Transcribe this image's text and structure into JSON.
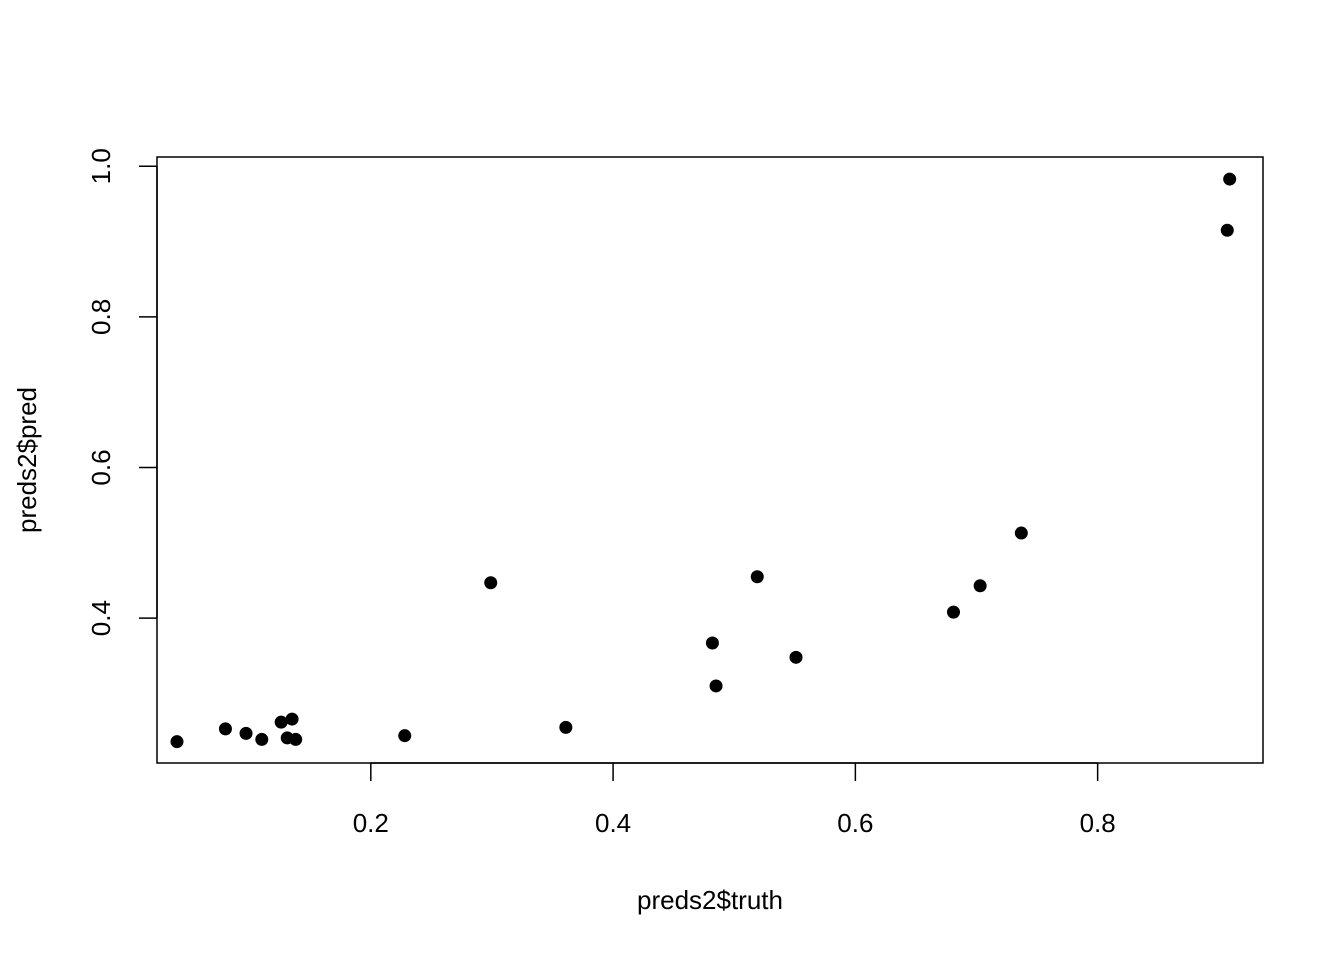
{
  "chart_data": {
    "type": "scatter",
    "title": "",
    "xlabel": "preds2$truth",
    "ylabel": "preds2$pred",
    "xlim": [
      0.0235,
      0.9365
    ],
    "ylim": [
      0.2077,
      1.0123
    ],
    "xticks": [
      0.2,
      0.4,
      0.6,
      0.8
    ],
    "xtick_labels": [
      "0.2",
      "0.4",
      "0.6",
      "0.8"
    ],
    "yticks": [
      0.4,
      0.6,
      0.8,
      1.0
    ],
    "ytick_labels": [
      "0.4",
      "0.6",
      "0.8",
      "1.0"
    ],
    "grid": false,
    "legend": "none",
    "point_color": "#000000",
    "series": [
      {
        "points": [
          {
            "x": 0.04,
            "y": 0.236
          },
          {
            "x": 0.08,
            "y": 0.253
          },
          {
            "x": 0.097,
            "y": 0.247
          },
          {
            "x": 0.11,
            "y": 0.239
          },
          {
            "x": 0.126,
            "y": 0.262
          },
          {
            "x": 0.131,
            "y": 0.241
          },
          {
            "x": 0.135,
            "y": 0.266
          },
          {
            "x": 0.138,
            "y": 0.239
          },
          {
            "x": 0.228,
            "y": 0.244
          },
          {
            "x": 0.299,
            "y": 0.447
          },
          {
            "x": 0.361,
            "y": 0.255
          },
          {
            "x": 0.482,
            "y": 0.367
          },
          {
            "x": 0.485,
            "y": 0.31
          },
          {
            "x": 0.519,
            "y": 0.455
          },
          {
            "x": 0.551,
            "y": 0.348
          },
          {
            "x": 0.681,
            "y": 0.408
          },
          {
            "x": 0.703,
            "y": 0.443
          },
          {
            "x": 0.737,
            "y": 0.513
          },
          {
            "x": 0.907,
            "y": 0.915
          },
          {
            "x": 0.909,
            "y": 0.983
          }
        ]
      }
    ]
  }
}
